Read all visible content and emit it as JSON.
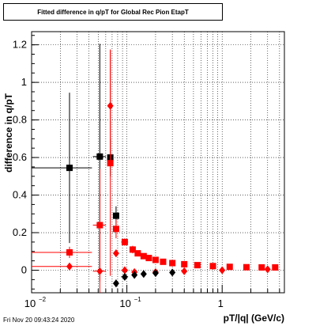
{
  "title": "Fitted difference in q/pT for Global Rec Pion EtapT",
  "ylabel": "difference in q/pT",
  "xlabel": "pT/|q| (GeV/c)",
  "timestamp": "Fri Nov 20 09:43:24 2020",
  "chart_data": {
    "type": "scatter",
    "x_scale": "log",
    "xlim": [
      0.01,
      4.5
    ],
    "ylim": [
      -0.12,
      1.27
    ],
    "xticks": [
      {
        "v": 0.01,
        "label": "10"
      },
      {
        "v": 0.1,
        "label": "10"
      },
      {
        "v": 1,
        "label": "1"
      }
    ],
    "yticks": [
      0,
      0.2,
      0.4,
      0.6,
      0.8,
      1,
      1.2
    ],
    "grid": true,
    "series": [
      {
        "marker": "square",
        "color": "#000000",
        "points": [
          {
            "x": 0.025,
            "y": 0.545,
            "xerr": 0.018,
            "yerr": 0.4
          },
          {
            "x": 0.052,
            "y": 0.605,
            "xerr": 0.008,
            "yerr": 0.6
          },
          {
            "x": 0.067,
            "y": 0.6,
            "xerr": 0.004,
            "yerr": 0.1
          },
          {
            "x": 0.077,
            "y": 0.29,
            "xerr": 0.004,
            "yerr": 0.05
          }
        ]
      },
      {
        "marker": "square",
        "color": "#ff0000",
        "points": [
          {
            "x": 0.025,
            "y": 0.095,
            "xerr": 0.018,
            "yerr": 0.03
          },
          {
            "x": 0.052,
            "y": 0.24,
            "xerr": 0.008,
            "yerr": 0.3
          },
          {
            "x": 0.067,
            "y": 0.57,
            "xerr": 0.004,
            "yerr": 0.6
          },
          {
            "x": 0.077,
            "y": 0.22,
            "xerr": 0.004,
            "yerr": 0.05
          },
          {
            "x": 0.095,
            "y": 0.15,
            "xerr": 0.008,
            "yerr": 0.02
          },
          {
            "x": 0.115,
            "y": 0.11,
            "xerr": 0.008,
            "yerr": 0.02
          },
          {
            "x": 0.13,
            "y": 0.09,
            "xerr": 0.006,
            "yerr": 0.01
          },
          {
            "x": 0.15,
            "y": 0.075,
            "xerr": 0.007,
            "yerr": 0.01
          },
          {
            "x": 0.17,
            "y": 0.065,
            "xerr": 0.008,
            "yerr": 0.01
          },
          {
            "x": 0.2,
            "y": 0.055,
            "xerr": 0.01,
            "yerr": 0.01
          },
          {
            "x": 0.24,
            "y": 0.045,
            "xerr": 0.012,
            "yerr": 0.01
          },
          {
            "x": 0.3,
            "y": 0.038,
            "xerr": 0.015,
            "yerr": 0.01
          },
          {
            "x": 0.4,
            "y": 0.032,
            "xerr": 0.02,
            "yerr": 0.01
          },
          {
            "x": 0.55,
            "y": 0.027,
            "xerr": 0.03,
            "yerr": 0.01
          },
          {
            "x": 0.8,
            "y": 0.022,
            "xerr": 0.05,
            "yerr": 0.01
          },
          {
            "x": 1.2,
            "y": 0.018,
            "xerr": 0.07,
            "yerr": 0.01
          },
          {
            "x": 1.8,
            "y": 0.016,
            "xerr": 0.1,
            "yerr": 0.01
          },
          {
            "x": 2.6,
            "y": 0.015,
            "xerr": 0.15,
            "yerr": 0.01
          },
          {
            "x": 3.6,
            "y": 0.015,
            "xerr": 0.2,
            "yerr": 0.01
          }
        ]
      },
      {
        "marker": "diamond",
        "color": "#ff0000",
        "points": [
          {
            "x": 0.025,
            "y": 0.02,
            "xerr": 0.018,
            "yerr": 0.02
          },
          {
            "x": 0.052,
            "y": -0.005,
            "xerr": 0.008,
            "yerr": 0.2
          },
          {
            "x": 0.067,
            "y": 0.875,
            "xerr": 0.004,
            "yerr": 0.3
          },
          {
            "x": 0.077,
            "y": 0.09,
            "xerr": 0.004,
            "yerr": 0.02
          },
          {
            "x": 0.095,
            "y": 0.0,
            "xerr": 0.008,
            "yerr": 0.01
          },
          {
            "x": 0.12,
            "y": -0.01,
            "xerr": 0.008,
            "yerr": 0.01
          },
          {
            "x": 0.2,
            "y": -0.01,
            "xerr": 0.01,
            "yerr": 0.005
          },
          {
            "x": 0.4,
            "y": -0.005,
            "xerr": 0.02,
            "yerr": 0.005
          },
          {
            "x": 1.0,
            "y": 0.0,
            "xerr": 0.05,
            "yerr": 0.005
          },
          {
            "x": 3.0,
            "y": 0.005,
            "xerr": 0.15,
            "yerr": 0.005
          }
        ]
      },
      {
        "marker": "diamond",
        "color": "#000000",
        "points": [
          {
            "x": 0.077,
            "y": -0.07,
            "xerr": 0.004,
            "yerr": 0.02
          },
          {
            "x": 0.095,
            "y": -0.035,
            "xerr": 0.008,
            "yerr": 0.01
          },
          {
            "x": 0.12,
            "y": -0.025,
            "xerr": 0.008,
            "yerr": 0.01
          },
          {
            "x": 0.15,
            "y": -0.02,
            "xerr": 0.008,
            "yerr": 0.005
          },
          {
            "x": 0.2,
            "y": -0.015,
            "xerr": 0.01,
            "yerr": 0.005
          },
          {
            "x": 0.3,
            "y": -0.012,
            "xerr": 0.015,
            "yerr": 0.005
          }
        ]
      }
    ]
  }
}
